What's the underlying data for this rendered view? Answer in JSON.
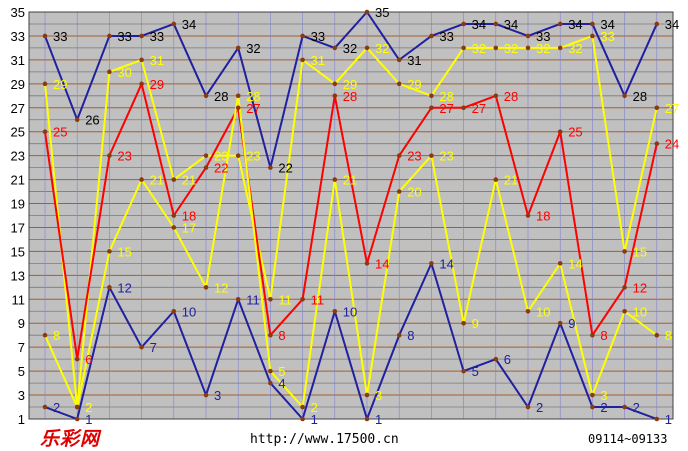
{
  "chart_data": {
    "type": "line",
    "y_ticks": [
      1,
      3,
      5,
      7,
      9,
      11,
      13,
      15,
      17,
      19,
      21,
      23,
      25,
      27,
      29,
      31,
      33,
      35
    ],
    "ylim": [
      1,
      35
    ],
    "grid": true,
    "x": [
      0,
      1,
      2,
      3,
      4,
      5,
      6,
      7,
      8,
      9,
      10,
      11,
      12,
      13,
      14,
      15,
      16,
      17,
      18,
      19
    ],
    "series": [
      {
        "color": "#2020a0",
        "label_color": "#000000",
        "values": [
          33,
          26,
          33,
          33,
          34,
          28,
          32,
          22,
          33,
          32,
          35,
          31,
          33,
          34,
          34,
          33,
          34,
          34,
          28,
          34
        ]
      },
      {
        "color": "#ffff00",
        "label_color": "#ffff00",
        "values": [
          29,
          2,
          30,
          31,
          21,
          23,
          23,
          11,
          31,
          29,
          32,
          29,
          28,
          32,
          32,
          32,
          32,
          33,
          15,
          27
        ]
      },
      {
        "color": "#ff0000",
        "label_color": "#ff0000",
        "values": [
          25,
          6,
          23,
          29,
          18,
          22,
          27,
          8,
          11,
          28,
          14,
          23,
          27,
          27,
          28,
          18,
          25,
          8,
          12,
          24
        ]
      },
      {
        "color": "#ffff00",
        "label_color": "#ffff00",
        "values": [
          8,
          2,
          15,
          21,
          17,
          12,
          28,
          5,
          2,
          21,
          3,
          20,
          23,
          9,
          21,
          10,
          14,
          3,
          10,
          8
        ]
      },
      {
        "color": "#2020a0",
        "label_color": "#2020a0",
        "values": [
          2,
          1,
          12,
          7,
          10,
          3,
          11,
          4,
          1,
          10,
          1,
          8,
          14,
          5,
          6,
          2,
          9,
          2,
          2,
          1
        ]
      }
    ]
  },
  "footer": {
    "logo": "乐彩网",
    "url": "http://www.17500.cn",
    "range": "09114~09133"
  },
  "colors": {
    "plot_bg": "#c0c0c0",
    "grid_minor": "#7a7a7a",
    "grid_major": "#a06030",
    "vline": "#8080d0",
    "marker": "#8b3a10"
  }
}
